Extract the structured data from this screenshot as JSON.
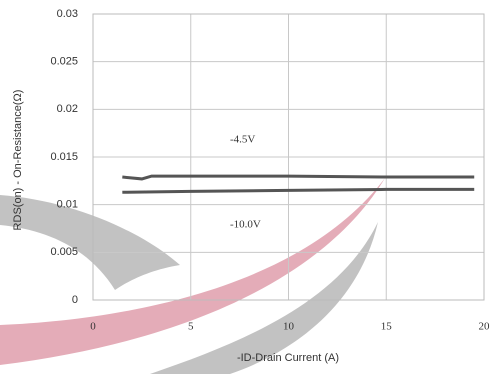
{
  "chart_data": {
    "type": "line",
    "x_label": "-ID-Drain Current (A)",
    "y_label": "RDS(on) - On-Resistance(Ω)",
    "xlim": [
      0,
      20
    ],
    "xticks": [
      0,
      5,
      10,
      15,
      20
    ],
    "ylim": [
      0,
      0.03
    ],
    "yticks": [
      0,
      0.005,
      0.01,
      0.015,
      0.02,
      0.025,
      0.03
    ],
    "grid": true,
    "series": [
      {
        "name": "-4.5V",
        "color": "#555555",
        "x": [
          1.5,
          2.5,
          3,
          5,
          10,
          15,
          19.5
        ],
        "values": [
          0.0129,
          0.0127,
          0.013,
          0.013,
          0.013,
          0.0129,
          0.0129
        ]
      },
      {
        "name": "-10.0V",
        "color": "#555555",
        "x": [
          1.5,
          5,
          10,
          15,
          19.5
        ],
        "values": [
          0.0113,
          0.0114,
          0.0115,
          0.0116,
          0.0116
        ]
      }
    ]
  }
}
